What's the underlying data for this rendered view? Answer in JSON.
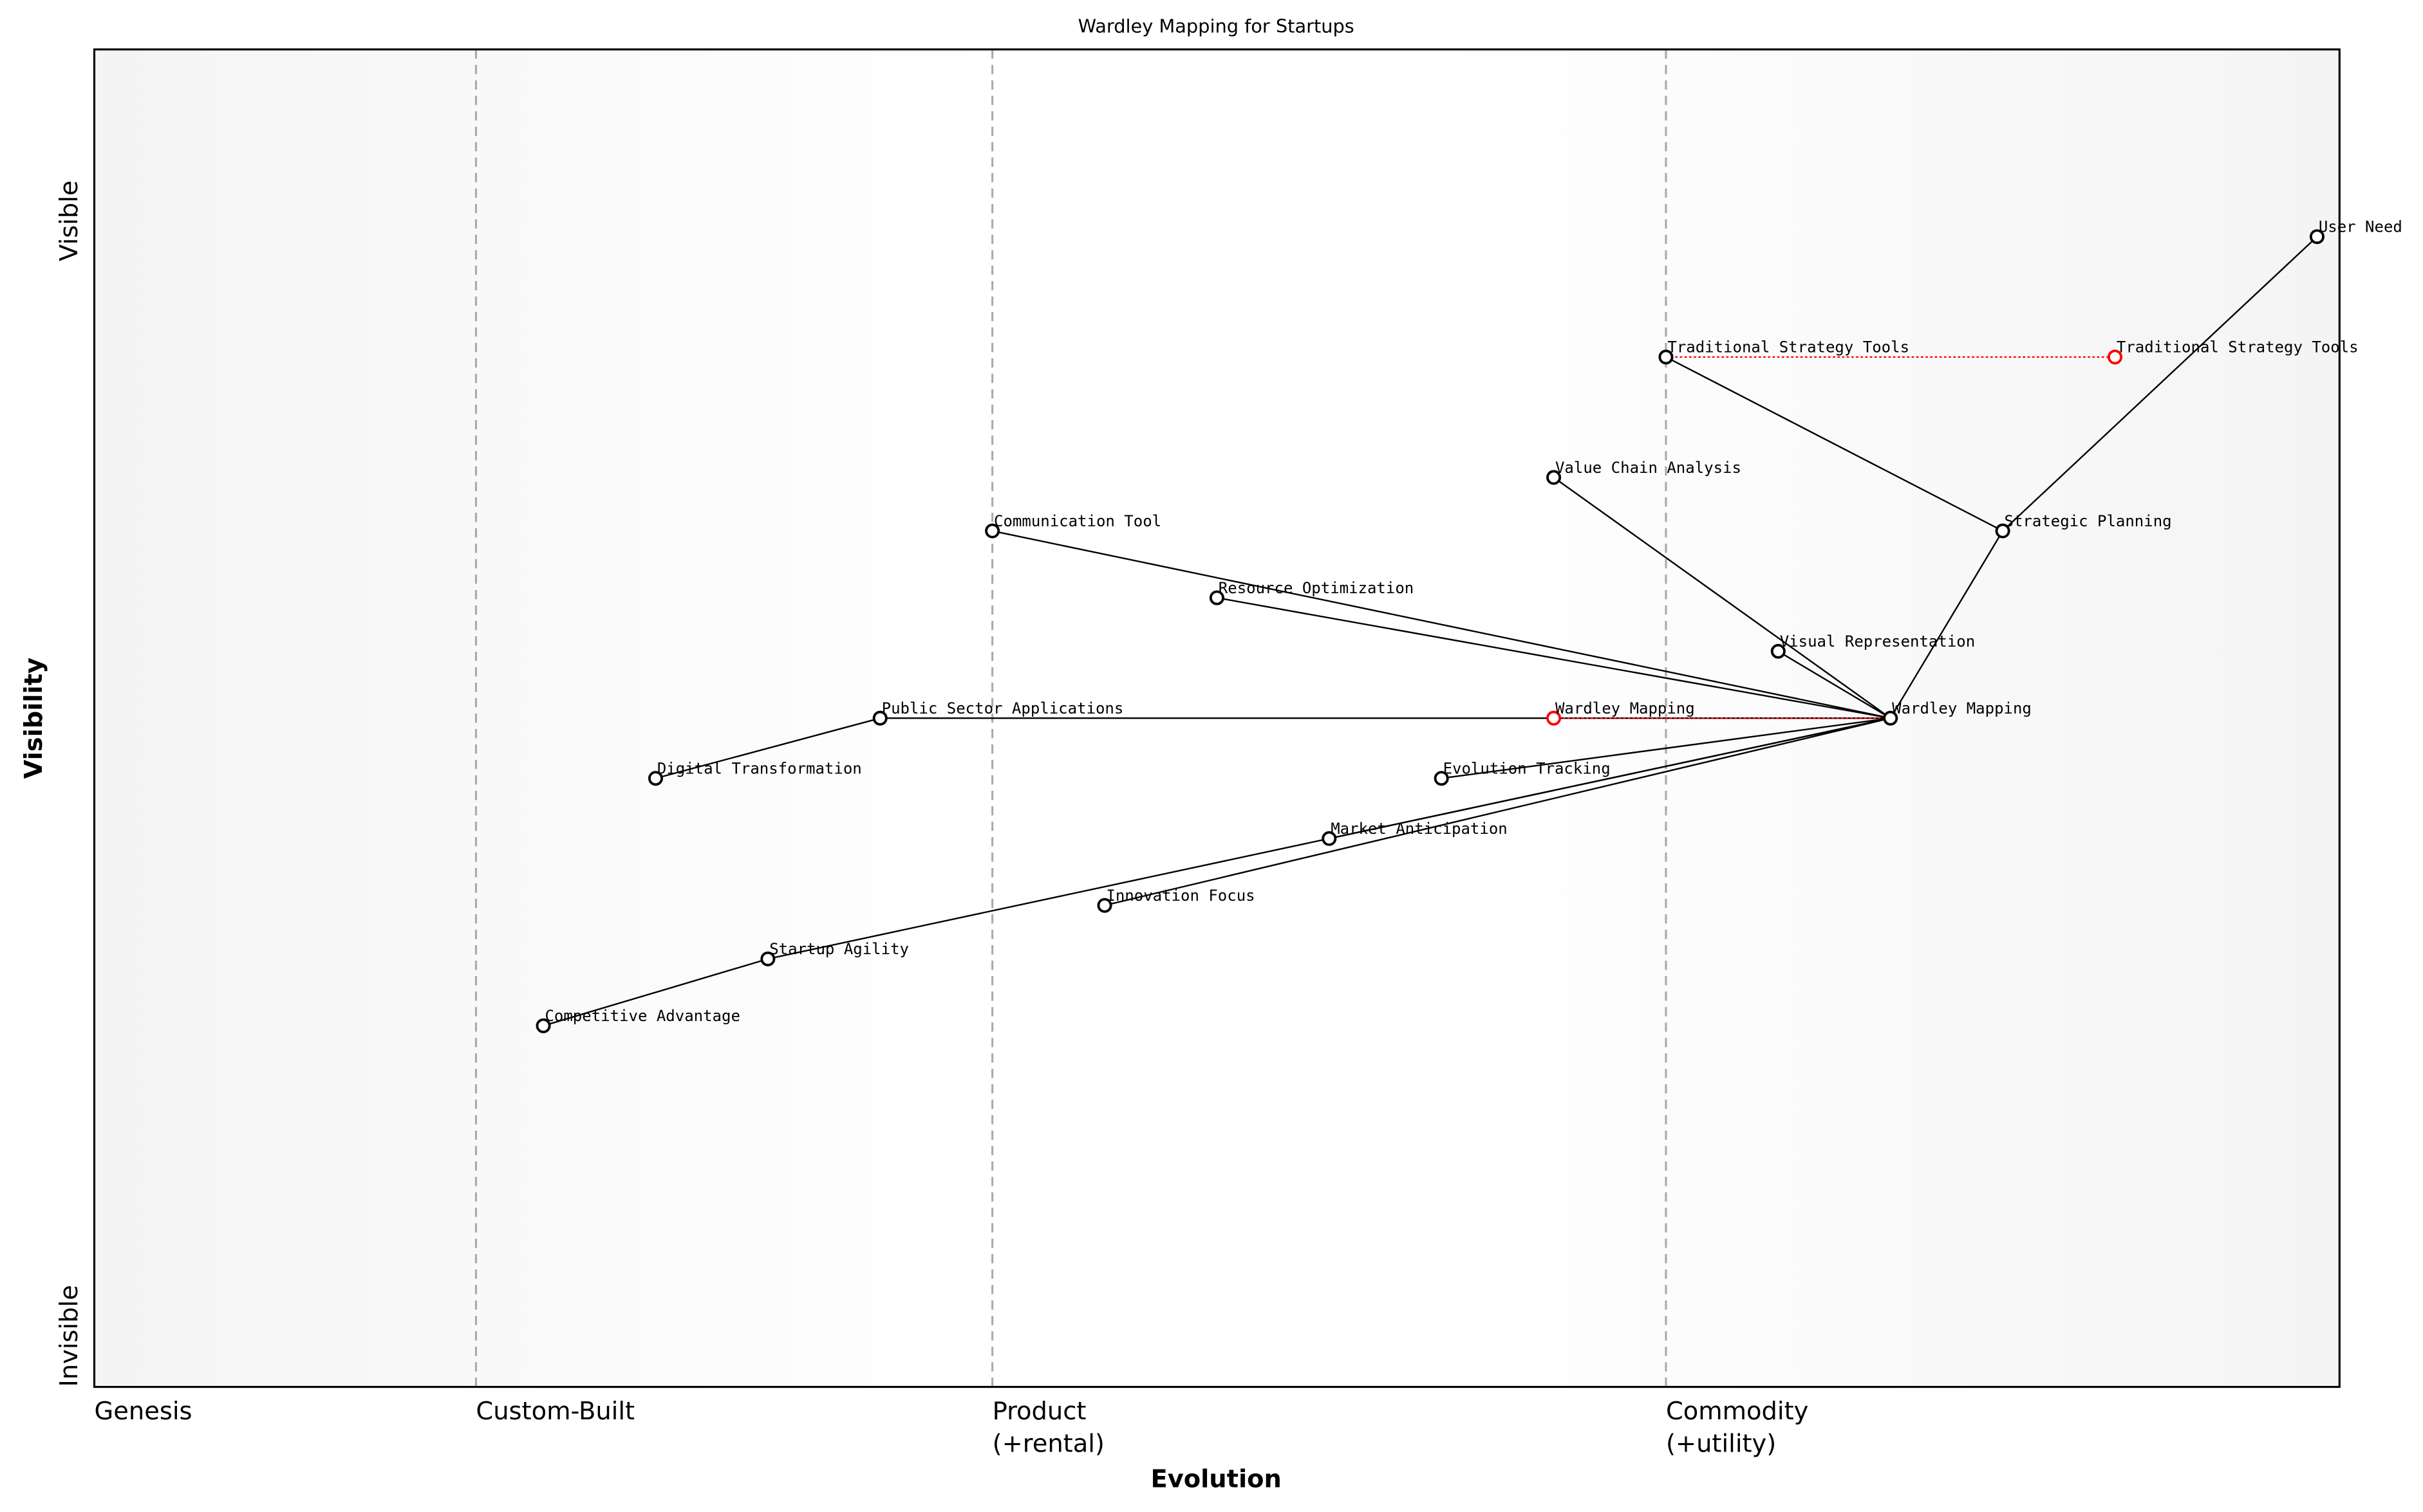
{
  "title": "Wardley Mapping for Startups",
  "x_axis": {
    "label": "Evolution",
    "stages": [
      {
        "label": [
          "Genesis"
        ],
        "position": 0.0
      },
      {
        "label": [
          "Custom-Built"
        ],
        "position": 0.17
      },
      {
        "label": [
          "Product",
          "(+rental)"
        ],
        "position": 0.4
      },
      {
        "label": [
          "Commodity",
          "(+utility)"
        ],
        "position": 0.7
      }
    ],
    "range": [
      0,
      1
    ]
  },
  "y_axis": {
    "label": "Visibility",
    "top_label": "Visible",
    "bottom_label": "Invisible",
    "range": [
      0,
      1
    ]
  },
  "colors": {
    "node": "#000000",
    "evolved_node": "#ff0000",
    "background_edge": "#f4f4f4",
    "background_center": "#ffffff",
    "stage_line": "#aaaaaa"
  },
  "chart_data": {
    "type": "scatter",
    "components": [
      {
        "id": "user_need",
        "name": "User Need",
        "evolution": 0.99,
        "visibility": 0.86
      },
      {
        "id": "tst",
        "name": "Traditional Strategy Tools",
        "evolution": 0.7,
        "visibility": 0.77
      },
      {
        "id": "tst_evolved",
        "name": "Traditional Strategy Tools",
        "evolution": 0.9,
        "visibility": 0.77,
        "evolved": true
      },
      {
        "id": "vca",
        "name": "Value Chain Analysis",
        "evolution": 0.65,
        "visibility": 0.68
      },
      {
        "id": "comm",
        "name": "Communication Tool",
        "evolution": 0.4,
        "visibility": 0.64
      },
      {
        "id": "sp",
        "name": "Strategic Planning",
        "evolution": 0.85,
        "visibility": 0.64
      },
      {
        "id": "ro",
        "name": "Resource Optimization",
        "evolution": 0.5,
        "visibility": 0.59
      },
      {
        "id": "vr",
        "name": "Visual Representation",
        "evolution": 0.75,
        "visibility": 0.55
      },
      {
        "id": "psa",
        "name": "Public Sector Applications",
        "evolution": 0.35,
        "visibility": 0.5
      },
      {
        "id": "wm",
        "name": "Wardley Mapping",
        "evolution": 0.8,
        "visibility": 0.5
      },
      {
        "id": "wm_evolved",
        "name": "Wardley Mapping",
        "evolution": 0.65,
        "visibility": 0.5,
        "evolved": true
      },
      {
        "id": "dt",
        "name": "Digital Transformation",
        "evolution": 0.25,
        "visibility": 0.455
      },
      {
        "id": "et",
        "name": "Evolution Tracking",
        "evolution": 0.6,
        "visibility": 0.455
      },
      {
        "id": "ma",
        "name": "Market Anticipation",
        "evolution": 0.55,
        "visibility": 0.41
      },
      {
        "id": "if",
        "name": "Innovation Focus",
        "evolution": 0.45,
        "visibility": 0.36
      },
      {
        "id": "sa",
        "name": "Startup Agility",
        "evolution": 0.3,
        "visibility": 0.32
      },
      {
        "id": "ca",
        "name": "Competitive Advantage",
        "evolution": 0.2,
        "visibility": 0.27
      }
    ],
    "links": [
      [
        "user_need",
        "sp"
      ],
      [
        "tst",
        "sp"
      ],
      [
        "sp",
        "wm"
      ],
      [
        "vca",
        "wm"
      ],
      [
        "vr",
        "wm"
      ],
      [
        "comm",
        "wm"
      ],
      [
        "ro",
        "wm"
      ],
      [
        "psa",
        "wm"
      ],
      [
        "dt",
        "psa"
      ],
      [
        "wm",
        "et"
      ],
      [
        "wm",
        "ma"
      ],
      [
        "wm",
        "if"
      ],
      [
        "wm",
        "sa"
      ],
      [
        "sa",
        "ca"
      ]
    ],
    "evolutions": [
      [
        "tst",
        "tst_evolved"
      ],
      [
        "wm_evolved",
        "wm"
      ]
    ]
  }
}
